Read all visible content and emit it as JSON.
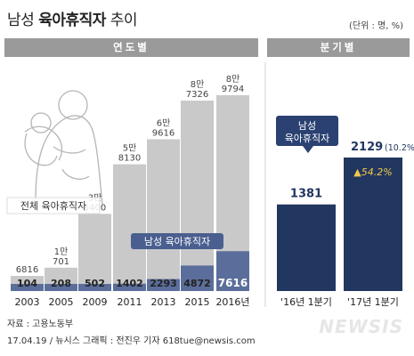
{
  "header": {
    "title_prefix": "남성",
    "title_bold": "육아휴직자",
    "title_suffix": "추이",
    "unit": "(단위 : 명, %)",
    "left_panel": "연도별",
    "right_panel": "분기별"
  },
  "footer": {
    "source": "자료 : 고용노동부",
    "credit": "17.04.19 / 뉴시스 그래픽 : 전진우 기자 618tue@newsis.com",
    "logo": "NEWSIS"
  },
  "chart_data": [
    {
      "type": "bar",
      "categories": [
        "2003",
        "2005",
        "2009",
        "2011",
        "2013",
        "2015",
        "2016년"
      ],
      "series": [
        {
          "name": "전체 육아휴직자",
          "values": [
            6816,
            10701,
            35400,
            58130,
            69616,
            87326,
            89794
          ],
          "labels": [
            [
              "6816"
            ],
            [
              "1만",
              "701"
            ],
            [
              "3만",
              "5400"
            ],
            [
              "5만",
              "8130"
            ],
            [
              "6만",
              "9616"
            ],
            [
              "8만",
              "7326"
            ],
            [
              "8만",
              "9794"
            ]
          ],
          "color": "#c9c9c9"
        },
        {
          "name": "남성 육아휴직자",
          "values": [
            104,
            208,
            502,
            1402,
            2293,
            4872,
            7616
          ],
          "color": "#5b6e9b"
        }
      ],
      "ylim": [
        0,
        100000
      ]
    },
    {
      "type": "bar",
      "categories": [
        "'16년 1분기",
        "'17년 1분기"
      ],
      "series": [
        {
          "name": "남성 육아휴직자",
          "values": [
            1381,
            2129
          ],
          "color": "#22375f"
        }
      ],
      "value_labels": [
        "1381",
        "2129"
      ],
      "share_label": "(10.2%)",
      "growth_label": "▲54.2%",
      "callout": [
        "남성",
        "육아휴직자"
      ]
    }
  ]
}
